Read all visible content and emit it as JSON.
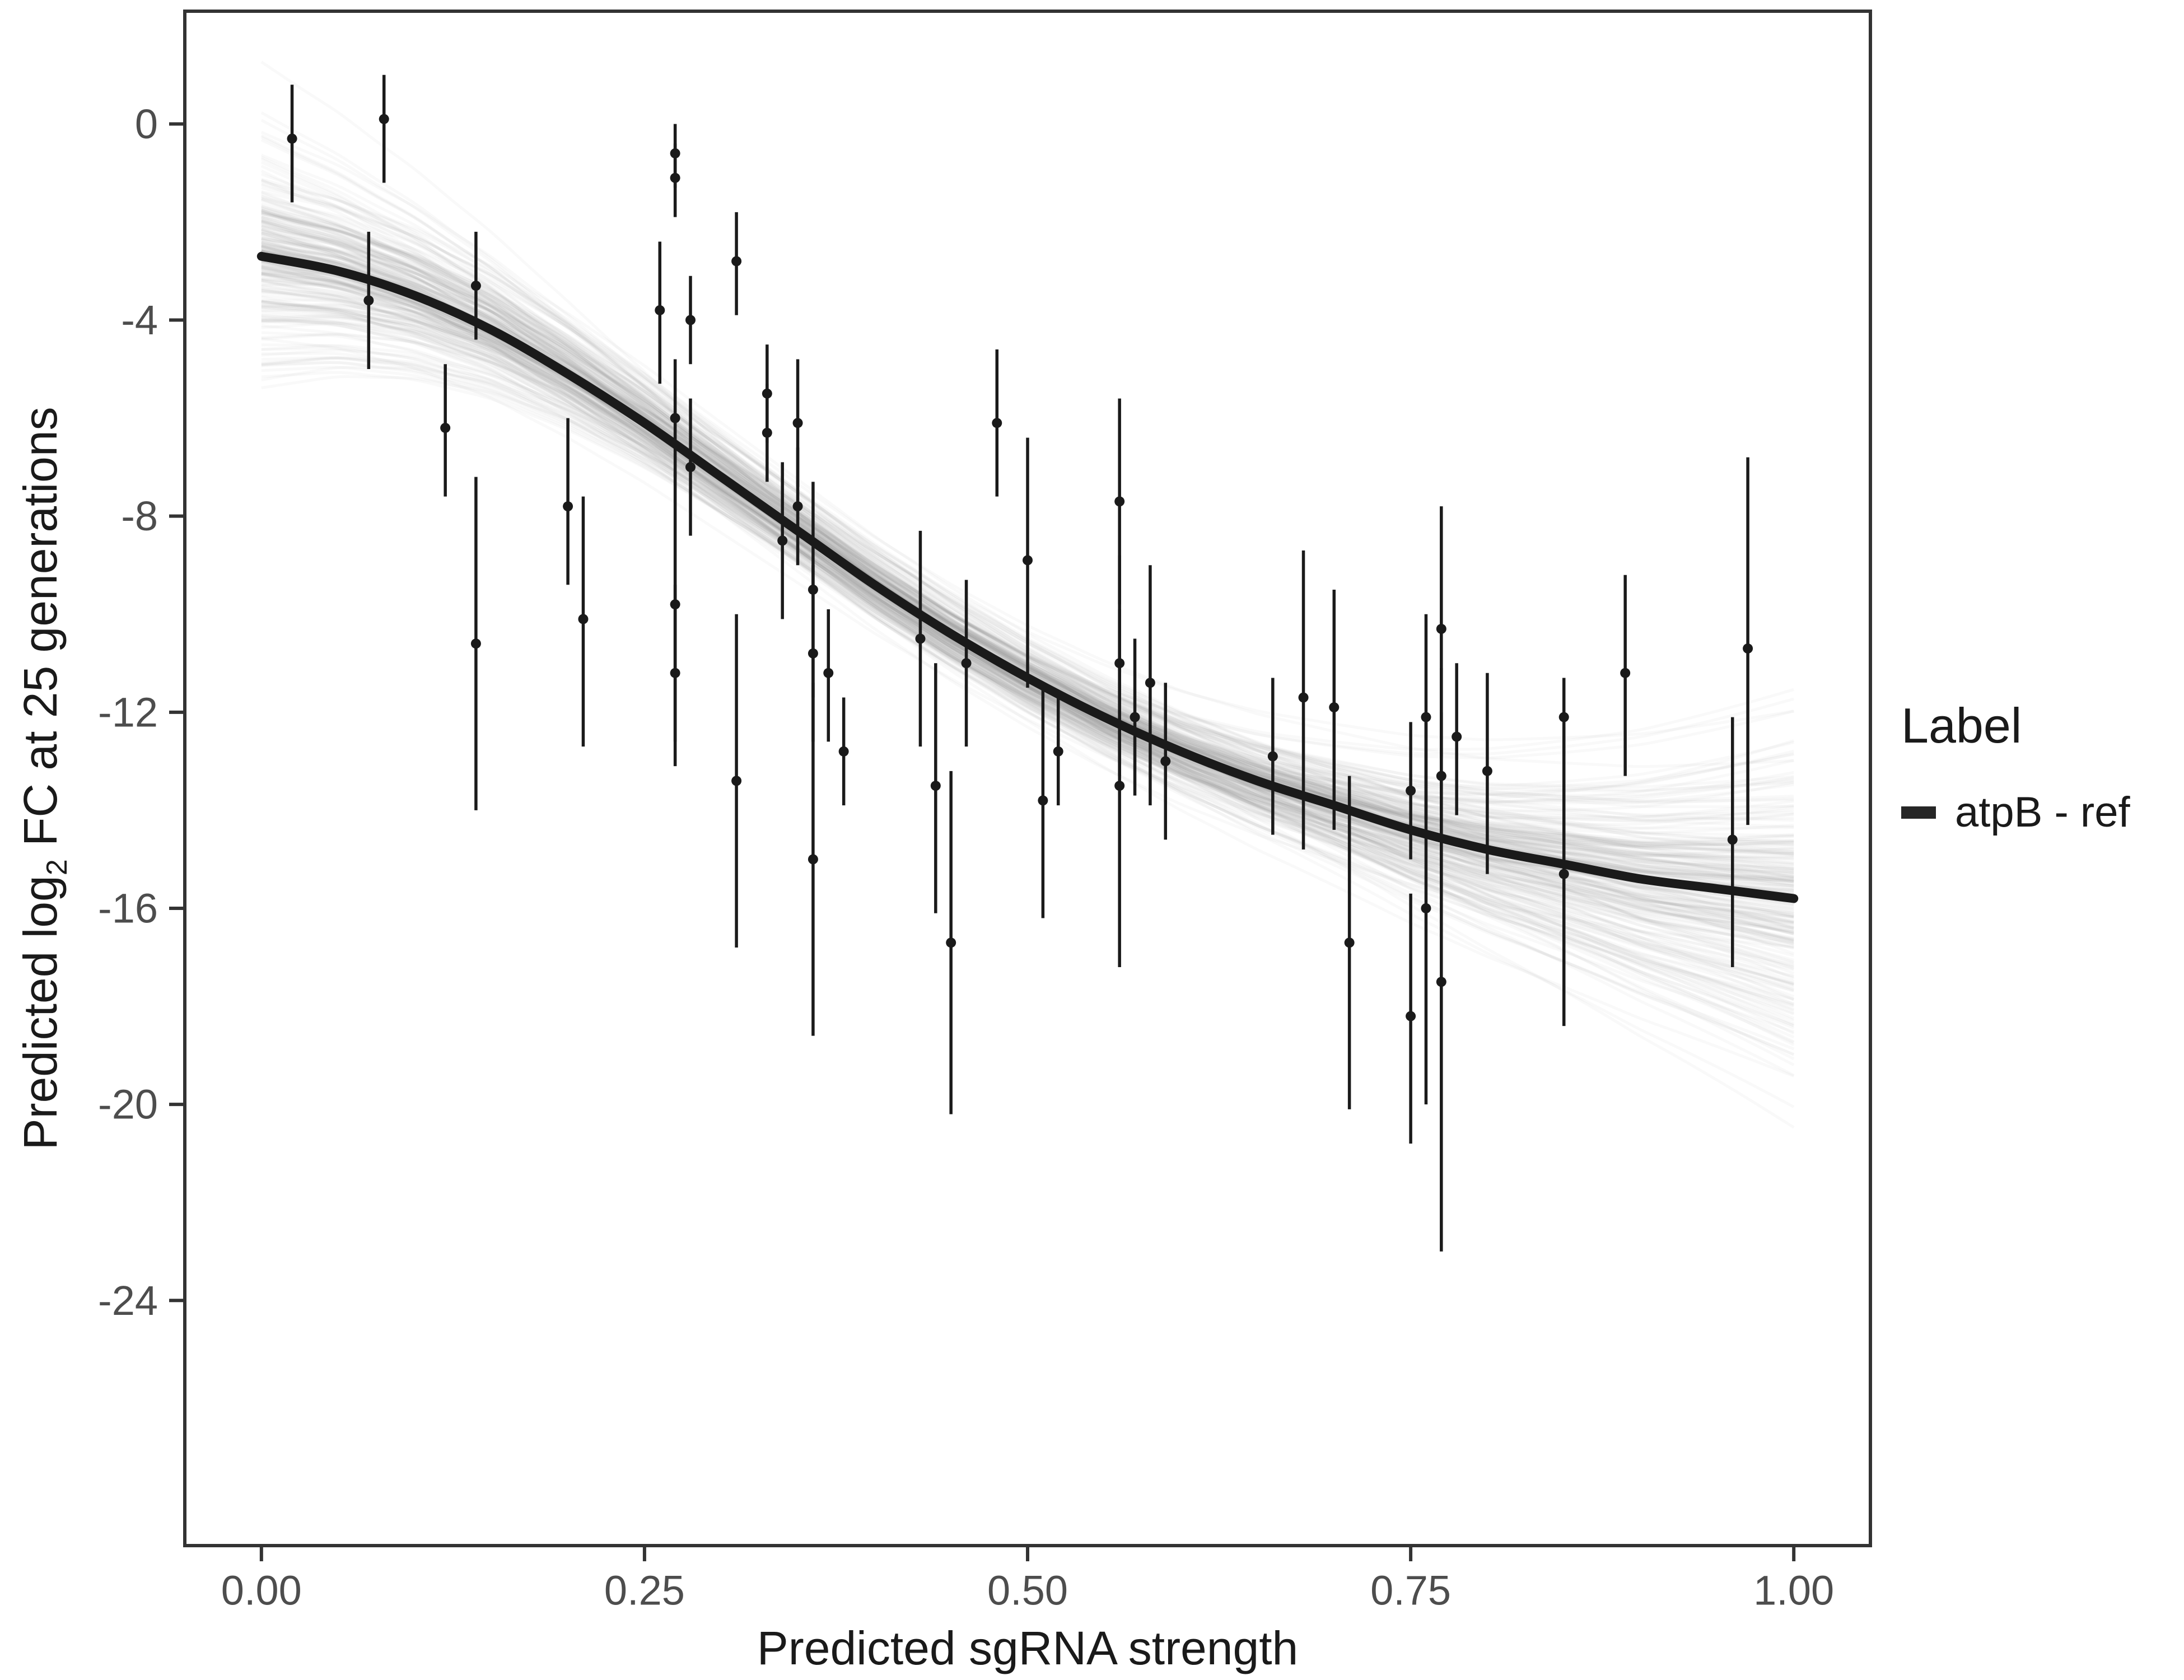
{
  "chart_data": {
    "type": "scatter",
    "title": "",
    "xlabel": "Predicted sgRNA strength",
    "ylabel": "Predicted log2 FC at 25 generations",
    "ylabel_prefix": "Predicted  log",
    "ylabel_sub": "2",
    "ylabel_suffix": " FC at 25 generations",
    "xlim": [
      -0.05,
      1.05
    ],
    "ylim": [
      -29,
      2.3
    ],
    "grid": false,
    "x_ticks": [
      {
        "value": 0.0,
        "label": "0.00"
      },
      {
        "value": 0.25,
        "label": "0.25"
      },
      {
        "value": 0.5,
        "label": "0.50"
      },
      {
        "value": 0.75,
        "label": "0.75"
      },
      {
        "value": 1.0,
        "label": "1.00"
      }
    ],
    "y_ticks": [
      {
        "value": 0,
        "label": "0"
      },
      {
        "value": -4,
        "label": "-4"
      },
      {
        "value": -8,
        "label": "-8"
      },
      {
        "value": -12,
        "label": "-12"
      },
      {
        "value": -16,
        "label": "-16"
      },
      {
        "value": -20,
        "label": "-20"
      },
      {
        "value": -24,
        "label": "-24"
      }
    ],
    "legend": {
      "title": "Label",
      "position": "right",
      "entries": [
        "atpB - ref"
      ]
    },
    "colors": {
      "point": "#1a1a1a",
      "fit_line": "#1a1a1a",
      "uncertainty": "#8c8c8c",
      "panel_border": "#333333",
      "tick_label": "#4d4d4d"
    },
    "fit_curve": {
      "x": [
        0.0,
        0.05,
        0.1,
        0.15,
        0.2,
        0.25,
        0.3,
        0.35,
        0.4,
        0.45,
        0.5,
        0.55,
        0.6,
        0.65,
        0.7,
        0.75,
        0.8,
        0.85,
        0.9,
        0.95,
        1.0
      ],
      "y": [
        -2.7,
        -3.0,
        -3.5,
        -4.2,
        -5.1,
        -6.1,
        -7.2,
        -8.3,
        -9.4,
        -10.4,
        -11.3,
        -12.1,
        -12.8,
        -13.4,
        -13.9,
        -14.4,
        -14.8,
        -15.1,
        -15.4,
        -15.6,
        -15.8
      ]
    },
    "points": {
      "format": [
        "x",
        "y",
        "ylow",
        "yhigh"
      ],
      "values": [
        [
          0.02,
          -0.3,
          -1.6,
          0.8
        ],
        [
          0.08,
          0.1,
          -1.2,
          1.0
        ],
        [
          0.07,
          -3.6,
          -5.0,
          -2.2
        ],
        [
          0.12,
          -6.2,
          -7.6,
          -4.9
        ],
        [
          0.14,
          -3.3,
          -4.4,
          -2.2
        ],
        [
          0.14,
          -10.6,
          -14.0,
          -7.2
        ],
        [
          0.2,
          -7.8,
          -9.4,
          -6.0
        ],
        [
          0.21,
          -10.1,
          -12.7,
          -7.6
        ],
        [
          0.26,
          -3.8,
          -5.3,
          -2.4
        ],
        [
          0.27,
          -0.6,
          -1.3,
          0.0
        ],
        [
          0.27,
          -1.1,
          -1.9,
          -0.4
        ],
        [
          0.27,
          -6.0,
          -7.2,
          -4.8
        ],
        [
          0.28,
          -7.0,
          -8.4,
          -5.6
        ],
        [
          0.28,
          -4.0,
          -4.9,
          -3.1
        ],
        [
          0.27,
          -9.8,
          -12.6,
          -7.1
        ],
        [
          0.27,
          -11.2,
          -13.1,
          -9.4
        ],
        [
          0.31,
          -2.8,
          -3.9,
          -1.8
        ],
        [
          0.31,
          -13.4,
          -16.8,
          -10.0
        ],
        [
          0.33,
          -5.5,
          -6.5,
          -4.5
        ],
        [
          0.33,
          -6.3,
          -7.3,
          -5.3
        ],
        [
          0.34,
          -8.5,
          -10.1,
          -6.9
        ],
        [
          0.35,
          -7.8,
          -9.0,
          -6.6
        ],
        [
          0.35,
          -6.1,
          -7.4,
          -4.8
        ],
        [
          0.36,
          -9.5,
          -11.7,
          -7.3
        ],
        [
          0.36,
          -10.8,
          -12.6,
          -9.0
        ],
        [
          0.36,
          -15.0,
          -18.6,
          -11.4
        ],
        [
          0.37,
          -11.2,
          -12.6,
          -9.9
        ],
        [
          0.38,
          -12.8,
          -13.9,
          -11.7
        ],
        [
          0.43,
          -10.5,
          -12.7,
          -8.3
        ],
        [
          0.44,
          -13.5,
          -16.1,
          -11.0
        ],
        [
          0.45,
          -16.7,
          -20.2,
          -13.2
        ],
        [
          0.46,
          -11.0,
          -12.7,
          -9.3
        ],
        [
          0.48,
          -6.1,
          -7.6,
          -4.6
        ],
        [
          0.5,
          -8.9,
          -11.5,
          -6.4
        ],
        [
          0.51,
          -13.8,
          -16.2,
          -11.5
        ],
        [
          0.52,
          -12.8,
          -13.9,
          -11.7
        ],
        [
          0.56,
          -7.7,
          -9.8,
          -5.6
        ],
        [
          0.56,
          -11.0,
          -13.3,
          -8.8
        ],
        [
          0.56,
          -13.5,
          -17.2,
          -9.9
        ],
        [
          0.57,
          -12.1,
          -13.7,
          -10.5
        ],
        [
          0.58,
          -11.4,
          -13.9,
          -9.0
        ],
        [
          0.59,
          -13.0,
          -14.6,
          -11.4
        ],
        [
          0.66,
          -12.9,
          -14.5,
          -11.3
        ],
        [
          0.68,
          -11.7,
          -14.8,
          -8.7
        ],
        [
          0.7,
          -11.9,
          -14.4,
          -9.5
        ],
        [
          0.71,
          -16.7,
          -20.1,
          -13.3
        ],
        [
          0.75,
          -13.6,
          -15.0,
          -12.2
        ],
        [
          0.75,
          -18.2,
          -20.8,
          -15.7
        ],
        [
          0.76,
          -12.1,
          -14.2,
          -10.0
        ],
        [
          0.76,
          -16.0,
          -20.0,
          -12.1
        ],
        [
          0.77,
          -10.3,
          -12.9,
          -7.8
        ],
        [
          0.77,
          -13.3,
          -15.6,
          -11.1
        ],
        [
          0.77,
          -17.5,
          -23.0,
          -12.0
        ],
        [
          0.78,
          -12.5,
          -14.1,
          -11.0
        ],
        [
          0.8,
          -13.2,
          -15.3,
          -11.2
        ],
        [
          0.85,
          -12.1,
          -12.9,
          -11.3
        ],
        [
          0.85,
          -15.3,
          -18.4,
          -12.3
        ],
        [
          0.89,
          -11.2,
          -13.3,
          -9.2
        ],
        [
          0.96,
          -14.6,
          -17.2,
          -12.1
        ],
        [
          0.97,
          -10.7,
          -14.3,
          -6.8
        ]
      ]
    }
  }
}
